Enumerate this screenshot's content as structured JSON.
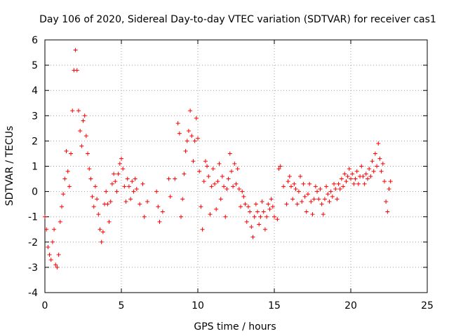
{
  "chart_data": {
    "type": "scatter",
    "title": "Day 106 of 2020, Sidereal Day-to-day VTEC variation (SDTVAR) for receiver cas1",
    "xlabel": "GPS time / hours",
    "ylabel": "SDTVAR / TECUs",
    "xlim": [
      0,
      25
    ],
    "ylim": [
      -4,
      6
    ],
    "xticks": [
      "0",
      "5",
      "10",
      "15",
      "20",
      "25"
    ],
    "yticks": [
      "-4",
      "-3",
      "-2",
      "-1",
      "0",
      "1",
      "2",
      "3",
      "4",
      "5",
      "6"
    ],
    "grid": true,
    "marker": "+",
    "color": "#ff0000",
    "series": [
      {
        "name": "SDTVAR",
        "points": [
          [
            0.0,
            -1.0
          ],
          [
            0.1,
            -1.5
          ],
          [
            0.2,
            -2.2
          ],
          [
            0.3,
            -2.5
          ],
          [
            0.4,
            -2.7
          ],
          [
            0.5,
            -2.0
          ],
          [
            0.6,
            -1.5
          ],
          [
            0.7,
            -2.9
          ],
          [
            0.8,
            -3.0
          ],
          [
            0.9,
            -2.5
          ],
          [
            1.0,
            -1.2
          ],
          [
            1.1,
            -0.6
          ],
          [
            1.2,
            -0.1
          ],
          [
            1.3,
            0.5
          ],
          [
            1.4,
            1.6
          ],
          [
            1.5,
            0.8
          ],
          [
            1.6,
            0.2
          ],
          [
            1.7,
            1.5
          ],
          [
            1.8,
            3.2
          ],
          [
            1.9,
            4.8
          ],
          [
            2.0,
            5.6
          ],
          [
            2.1,
            4.8
          ],
          [
            2.2,
            3.2
          ],
          [
            2.3,
            2.4
          ],
          [
            2.4,
            1.8
          ],
          [
            2.5,
            2.8
          ],
          [
            2.6,
            3.0
          ],
          [
            2.7,
            2.2
          ],
          [
            2.8,
            1.5
          ],
          [
            2.9,
            0.9
          ],
          [
            3.0,
            0.5
          ],
          [
            3.1,
            -0.2
          ],
          [
            3.2,
            -0.6
          ],
          [
            3.3,
            0.2
          ],
          [
            3.4,
            -0.3
          ],
          [
            3.5,
            -0.9
          ],
          [
            3.6,
            -1.5
          ],
          [
            3.7,
            -2.0
          ],
          [
            3.8,
            -1.6
          ],
          [
            3.9,
            -0.5
          ],
          [
            4.0,
            0.0
          ],
          [
            4.1,
            -0.5
          ],
          [
            4.2,
            -1.2
          ],
          [
            4.3,
            -0.4
          ],
          [
            4.4,
            0.3
          ],
          [
            4.5,
            0.7
          ],
          [
            4.6,
            0.4
          ],
          [
            4.7,
            0.0
          ],
          [
            4.8,
            0.7
          ],
          [
            4.9,
            1.1
          ],
          [
            5.0,
            1.3
          ],
          [
            5.1,
            0.9
          ],
          [
            5.2,
            0.2
          ],
          [
            5.3,
            -0.4
          ],
          [
            5.4,
            0.5
          ],
          [
            5.5,
            0.2
          ],
          [
            5.6,
            -0.3
          ],
          [
            5.7,
            0.4
          ],
          [
            5.8,
            0.0
          ],
          [
            5.9,
            0.5
          ],
          [
            6.0,
            0.1
          ],
          [
            6.2,
            -0.5
          ],
          [
            6.4,
            0.3
          ],
          [
            6.5,
            -1.0
          ],
          [
            6.7,
            -0.4
          ],
          [
            7.3,
            0.0
          ],
          [
            7.4,
            -0.6
          ],
          [
            7.5,
            -1.2
          ],
          [
            7.7,
            -0.8
          ],
          [
            8.1,
            0.5
          ],
          [
            8.2,
            -0.2
          ],
          [
            8.5,
            0.5
          ],
          [
            8.7,
            2.7
          ],
          [
            8.8,
            2.3
          ],
          [
            8.9,
            -1.0
          ],
          [
            9.0,
            -0.3
          ],
          [
            9.1,
            0.7
          ],
          [
            9.2,
            1.6
          ],
          [
            9.3,
            2.0
          ],
          [
            9.4,
            2.4
          ],
          [
            9.5,
            3.2
          ],
          [
            9.6,
            2.2
          ],
          [
            9.7,
            1.2
          ],
          [
            9.8,
            2.0
          ],
          [
            9.9,
            2.9
          ],
          [
            10.0,
            2.1
          ],
          [
            10.1,
            0.8
          ],
          [
            10.2,
            -0.6
          ],
          [
            10.3,
            -1.5
          ],
          [
            10.4,
            0.4
          ],
          [
            10.5,
            1.2
          ],
          [
            10.6,
            1.0
          ],
          [
            10.7,
            0.6
          ],
          [
            10.8,
            -0.9
          ],
          [
            10.9,
            0.2
          ],
          [
            11.0,
            0.9
          ],
          [
            11.1,
            0.3
          ],
          [
            11.2,
            -0.7
          ],
          [
            11.3,
            0.4
          ],
          [
            11.4,
            1.1
          ],
          [
            11.5,
            -0.3
          ],
          [
            11.6,
            0.6
          ],
          [
            11.7,
            0.2
          ],
          [
            11.8,
            -1.0
          ],
          [
            11.9,
            0.1
          ],
          [
            12.0,
            0.5
          ],
          [
            12.1,
            1.5
          ],
          [
            12.2,
            0.8
          ],
          [
            12.3,
            0.2
          ],
          [
            12.4,
            1.1
          ],
          [
            12.5,
            0.3
          ],
          [
            12.6,
            0.9
          ],
          [
            12.7,
            0.1
          ],
          [
            12.8,
            -0.6
          ],
          [
            12.9,
            0.0
          ],
          [
            13.0,
            -0.2
          ],
          [
            13.1,
            -0.5
          ],
          [
            13.2,
            -1.2
          ],
          [
            13.3,
            -0.6
          ],
          [
            13.4,
            -0.8
          ],
          [
            13.5,
            -1.4
          ],
          [
            13.6,
            -1.8
          ],
          [
            13.7,
            -1.0
          ],
          [
            13.8,
            -0.5
          ],
          [
            13.9,
            -0.8
          ],
          [
            14.0,
            -1.3
          ],
          [
            14.1,
            -1.0
          ],
          [
            14.2,
            -0.4
          ],
          [
            14.3,
            -0.8
          ],
          [
            14.4,
            -1.5
          ],
          [
            14.5,
            -1.0
          ],
          [
            14.6,
            -0.5
          ],
          [
            14.7,
            -0.7
          ],
          [
            14.8,
            -0.3
          ],
          [
            14.9,
            -0.6
          ],
          [
            15.0,
            -1.0
          ],
          [
            15.2,
            -1.1
          ],
          [
            15.3,
            0.9
          ],
          [
            15.4,
            1.0
          ],
          [
            15.6,
            0.2
          ],
          [
            15.8,
            -0.5
          ],
          [
            15.9,
            0.4
          ],
          [
            16.0,
            0.6
          ],
          [
            16.1,
            0.2
          ],
          [
            16.2,
            -0.3
          ],
          [
            16.3,
            0.3
          ],
          [
            16.4,
            0.1
          ],
          [
            16.5,
            -0.5
          ],
          [
            16.6,
            0.0
          ],
          [
            16.7,
            0.6
          ],
          [
            16.8,
            -0.4
          ],
          [
            16.9,
            0.3
          ],
          [
            17.0,
            -0.2
          ],
          [
            17.1,
            -0.8
          ],
          [
            17.2,
            -0.1
          ],
          [
            17.3,
            0.3
          ],
          [
            17.4,
            -0.4
          ],
          [
            17.5,
            -0.9
          ],
          [
            17.6,
            -0.3
          ],
          [
            17.7,
            0.2
          ],
          [
            17.8,
            0.0
          ],
          [
            17.9,
            -0.3
          ],
          [
            18.0,
            0.1
          ],
          [
            18.1,
            -0.5
          ],
          [
            18.2,
            -0.9
          ],
          [
            18.3,
            -0.3
          ],
          [
            18.4,
            0.2
          ],
          [
            18.5,
            -0.1
          ],
          [
            18.6,
            -0.4
          ],
          [
            18.7,
            0.0
          ],
          [
            18.8,
            -0.2
          ],
          [
            18.9,
            0.3
          ],
          [
            19.0,
            0.1
          ],
          [
            19.1,
            -0.3
          ],
          [
            19.2,
            0.3
          ],
          [
            19.3,
            0.1
          ],
          [
            19.4,
            0.5
          ],
          [
            19.5,
            0.2
          ],
          [
            19.6,
            0.7
          ],
          [
            19.7,
            0.4
          ],
          [
            19.8,
            0.6
          ],
          [
            19.9,
            0.9
          ],
          [
            20.0,
            0.5
          ],
          [
            20.1,
            0.7
          ],
          [
            20.2,
            0.3
          ],
          [
            20.3,
            0.5
          ],
          [
            20.4,
            0.8
          ],
          [
            20.5,
            0.3
          ],
          [
            20.6,
            0.6
          ],
          [
            20.7,
            1.0
          ],
          [
            20.8,
            0.6
          ],
          [
            20.9,
            0.3
          ],
          [
            21.0,
            0.7
          ],
          [
            21.1,
            0.5
          ],
          [
            21.2,
            0.9
          ],
          [
            21.3,
            0.6
          ],
          [
            21.4,
            1.2
          ],
          [
            21.5,
            0.8
          ],
          [
            21.6,
            1.5
          ],
          [
            21.7,
            1.0
          ],
          [
            21.8,
            1.9
          ],
          [
            21.9,
            1.3
          ],
          [
            22.0,
            0.8
          ],
          [
            22.1,
            1.1
          ],
          [
            22.2,
            0.4
          ],
          [
            22.3,
            -0.4
          ],
          [
            22.4,
            -0.8
          ],
          [
            22.5,
            0.1
          ],
          [
            22.6,
            0.4
          ]
        ]
      }
    ]
  }
}
